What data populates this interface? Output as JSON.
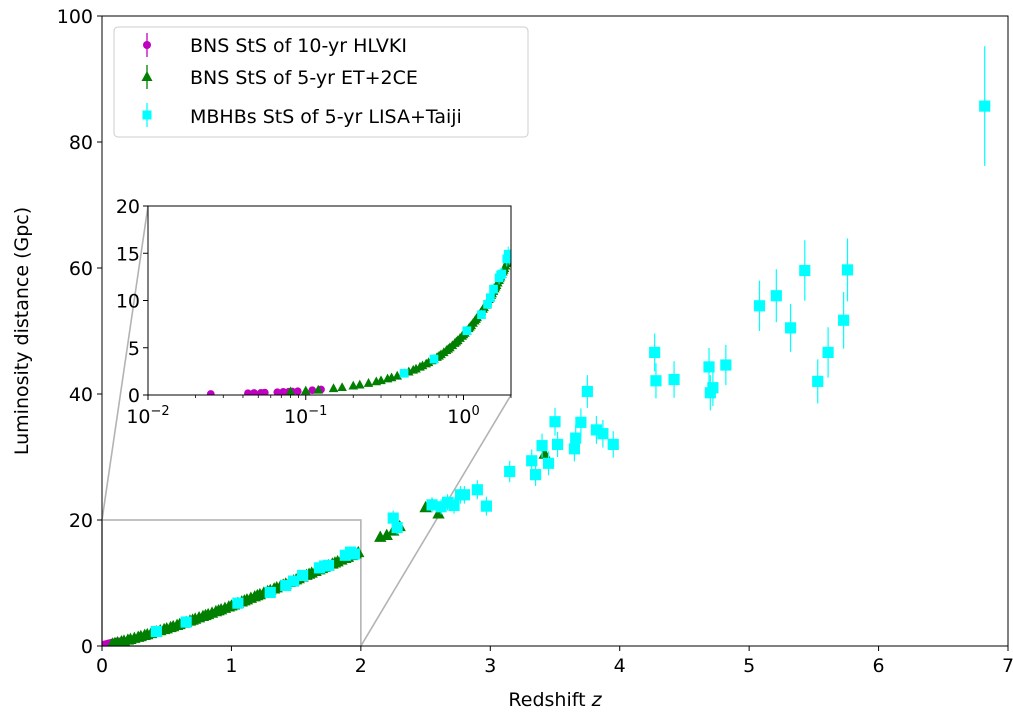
{
  "chart_data": {
    "type": "scatter",
    "xlabel_main": "Redshift ",
    "xlabel_var": "z",
    "ylabel": "Luminosity distance (Gpc)",
    "xlim": [
      0,
      7
    ],
    "ylim": [
      0,
      100
    ],
    "xticks": [
      "0",
      "1",
      "2",
      "3",
      "4",
      "5",
      "6",
      "7"
    ],
    "yticks": [
      "0",
      "20",
      "40",
      "60",
      "80",
      "100"
    ],
    "grid": false,
    "legend_position": "top-left",
    "series": [
      {
        "name": "BNS StS of 10-yr HLVKI",
        "marker": "circle",
        "color": "#bf00bf",
        "points": [
          [
            0.025,
            0.11
          ],
          [
            0.043,
            0.19
          ],
          [
            0.047,
            0.21
          ],
          [
            0.052,
            0.23
          ],
          [
            0.055,
            0.25
          ],
          [
            0.066,
            0.3
          ],
          [
            0.072,
            0.33
          ],
          [
            0.078,
            0.35
          ],
          [
            0.082,
            0.37
          ],
          [
            0.089,
            0.4
          ],
          [
            0.11,
            0.51
          ],
          [
            0.125,
            0.58
          ]
        ]
      },
      {
        "name": "BNS StS of 5-yr ET+2CE",
        "marker": "triangle",
        "color": "#007f00",
        "points": [
          [
            0.08,
            0.36
          ],
          [
            0.1,
            0.46
          ],
          [
            0.12,
            0.55
          ],
          [
            0.15,
            0.71
          ],
          [
            0.17,
            0.82
          ],
          [
            0.2,
            0.98
          ],
          [
            0.22,
            1.09
          ],
          [
            0.25,
            1.26
          ],
          [
            0.28,
            1.43
          ],
          [
            0.3,
            1.55
          ],
          [
            0.33,
            1.73
          ],
          [
            0.35,
            1.85
          ],
          [
            0.38,
            2.03
          ],
          [
            0.42,
            2.28
          ],
          [
            0.45,
            2.47
          ],
          [
            0.48,
            2.66
          ],
          [
            0.5,
            2.78
          ],
          [
            0.53,
            2.98
          ],
          [
            0.55,
            3.12
          ],
          [
            0.58,
            3.32
          ],
          [
            0.6,
            3.45
          ],
          [
            0.63,
            3.66
          ],
          [
            0.65,
            3.8
          ],
          [
            0.68,
            4.01
          ],
          [
            0.7,
            4.15
          ],
          [
            0.72,
            4.3
          ],
          [
            0.75,
            4.52
          ],
          [
            0.78,
            4.74
          ],
          [
            0.8,
            4.88
          ],
          [
            0.82,
            5.03
          ],
          [
            0.85,
            5.26
          ],
          [
            0.88,
            5.49
          ],
          [
            0.9,
            5.64
          ],
          [
            0.92,
            5.79
          ],
          [
            0.95,
            6.02
          ],
          [
            0.98,
            6.25
          ],
          [
            1.0,
            6.4
          ],
          [
            1.02,
            6.56
          ],
          [
            1.05,
            6.8
          ],
          [
            1.08,
            7.05
          ],
          [
            1.1,
            7.21
          ],
          [
            1.12,
            7.37
          ],
          [
            1.15,
            7.62
          ],
          [
            1.18,
            7.86
          ],
          [
            1.2,
            8.03
          ],
          [
            1.22,
            8.2
          ],
          [
            1.25,
            8.44
          ],
          [
            1.28,
            8.69
          ],
          [
            1.3,
            8.86
          ],
          [
            1.33,
            9.11
          ],
          [
            1.35,
            9.28
          ],
          [
            1.38,
            9.53
          ],
          [
            1.4,
            9.7
          ],
          [
            1.42,
            9.88
          ],
          [
            1.45,
            10.13
          ],
          [
            1.48,
            10.39
          ],
          [
            1.5,
            10.56
          ],
          [
            1.52,
            10.74
          ],
          [
            1.55,
            11.0
          ],
          [
            1.58,
            11.26
          ],
          [
            1.6,
            11.44
          ],
          [
            1.62,
            11.62
          ],
          [
            1.65,
            11.88
          ],
          [
            1.68,
            12.15
          ],
          [
            1.7,
            12.33
          ],
          [
            1.72,
            12.51
          ],
          [
            1.75,
            12.78
          ],
          [
            1.78,
            13.05
          ],
          [
            1.8,
            13.23
          ],
          [
            1.82,
            13.41
          ],
          [
            1.85,
            13.68
          ],
          [
            1.88,
            13.95
          ],
          [
            1.9,
            14.13
          ],
          [
            1.93,
            14.41
          ],
          [
            1.96,
            14.68
          ],
          [
            1.98,
            14.87
          ],
          [
            2.15,
            17.3
          ],
          [
            2.2,
            17.6
          ],
          [
            2.25,
            18.3
          ],
          [
            2.3,
            19.0
          ],
          [
            2.5,
            22.0
          ],
          [
            2.55,
            22.5
          ],
          [
            2.6,
            21.0
          ],
          [
            3.42,
            30.5
          ]
        ]
      },
      {
        "name": "MBHBs StS of 5-yr LISA+Taiji",
        "marker": "square",
        "color": "#00ffff",
        "points": [
          [
            0.42,
            2.3,
            0.25
          ],
          [
            0.65,
            3.8,
            0.3
          ],
          [
            1.05,
            6.8,
            0.4
          ],
          [
            1.3,
            8.5,
            0.5
          ],
          [
            1.42,
            9.6,
            0.5
          ],
          [
            1.48,
            10.3,
            0.5
          ],
          [
            1.55,
            11.2,
            0.6
          ],
          [
            1.68,
            12.4,
            0.7
          ],
          [
            1.72,
            12.7,
            0.7
          ],
          [
            1.75,
            12.8,
            0.7
          ],
          [
            1.88,
            14.4,
            0.8
          ],
          [
            1.92,
            14.9,
            0.8
          ],
          [
            1.95,
            14.6,
            0.8
          ],
          [
            2.25,
            20.3,
            1.2
          ],
          [
            2.28,
            18.8,
            1.1
          ],
          [
            2.55,
            22.4,
            1.2
          ],
          [
            2.62,
            22.1,
            1.2
          ],
          [
            2.67,
            22.8,
            1.3
          ],
          [
            2.72,
            22.3,
            1.3
          ],
          [
            2.77,
            24.0,
            1.4
          ],
          [
            2.8,
            24.0,
            1.4
          ],
          [
            2.9,
            24.8,
            1.5
          ],
          [
            2.97,
            22.2,
            1.5
          ],
          [
            3.15,
            27.7,
            1.7
          ],
          [
            3.32,
            29.4,
            1.8
          ],
          [
            3.35,
            27.2,
            1.8
          ],
          [
            3.4,
            31.8,
            1.9
          ],
          [
            3.45,
            29.0,
            1.9
          ],
          [
            3.5,
            35.6,
            2.2
          ],
          [
            3.52,
            32.0,
            2.0
          ],
          [
            3.65,
            31.3,
            2.0
          ],
          [
            3.66,
            33.0,
            2.1
          ],
          [
            3.7,
            35.5,
            2.2
          ],
          [
            3.75,
            40.4,
            2.6
          ],
          [
            3.82,
            34.3,
            2.2
          ],
          [
            3.87,
            33.7,
            2.2
          ],
          [
            3.95,
            32.0,
            2.1
          ],
          [
            4.27,
            46.6,
            3.0
          ],
          [
            4.28,
            42.1,
            2.8
          ],
          [
            4.42,
            42.3,
            2.9
          ],
          [
            4.69,
            44.3,
            3.0
          ],
          [
            4.7,
            40.2,
            2.8
          ],
          [
            4.72,
            41.0,
            2.9
          ],
          [
            4.82,
            44.6,
            3.2
          ],
          [
            5.08,
            54.0,
            4.0
          ],
          [
            5.21,
            55.6,
            4.2
          ],
          [
            5.32,
            50.5,
            3.8
          ],
          [
            5.43,
            59.6,
            4.8
          ],
          [
            5.53,
            42.0,
            3.5
          ],
          [
            5.61,
            46.6,
            4.0
          ],
          [
            5.73,
            51.7,
            4.5
          ],
          [
            5.76,
            59.7,
            5.0
          ],
          [
            6.82,
            85.7,
            9.5
          ]
        ]
      }
    ],
    "inset": {
      "xscale": "log",
      "xlim": [
        0.01,
        2
      ],
      "ylim": [
        0,
        20
      ],
      "xticks": [
        {
          "base": "10",
          "exp": "−2",
          "value": 0.01
        },
        {
          "base": "10",
          "exp": "−1",
          "value": 0.1
        },
        {
          "base": "10",
          "exp": "0",
          "value": 1
        }
      ],
      "yticks": [
        "0",
        "5",
        "10",
        "15",
        "20"
      ]
    }
  }
}
